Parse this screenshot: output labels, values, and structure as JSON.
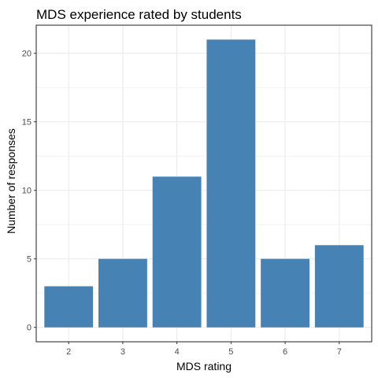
{
  "chart_data": {
    "type": "bar",
    "title": "MDS experience rated by students",
    "xlabel": "MDS rating",
    "ylabel": "Number of responses",
    "categories": [
      "2",
      "3",
      "4",
      "5",
      "6",
      "7"
    ],
    "values": [
      3,
      5,
      11,
      21,
      5,
      6
    ],
    "ylim": [
      -1.05,
      22.05
    ],
    "yticks": [
      0,
      5,
      10,
      15,
      20
    ],
    "grid": true,
    "bar_color": "#4682B4",
    "grid_color": "#EBEBEB",
    "axis_color": "#333333",
    "background": "#FFFFFF"
  }
}
